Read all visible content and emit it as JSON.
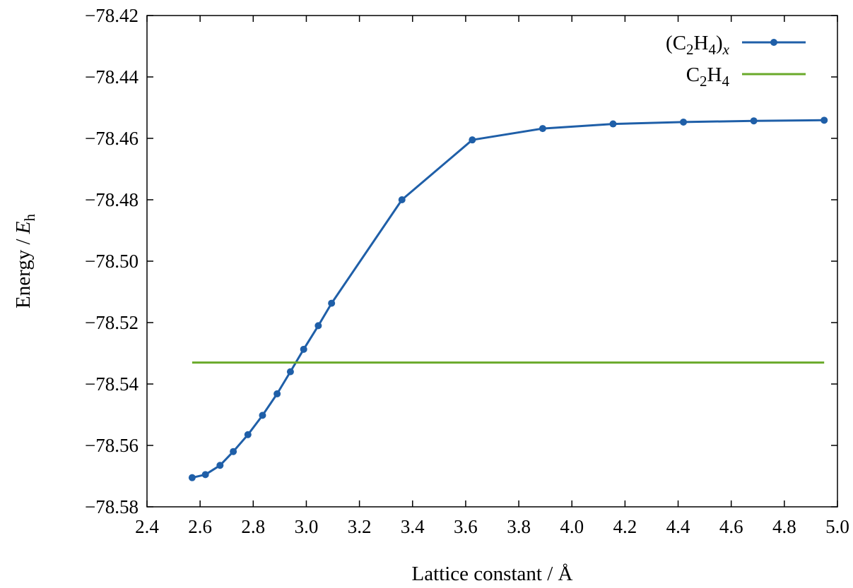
{
  "chart_data": {
    "type": "line",
    "xlabel": {
      "prefix": "Lattice constant / ",
      "unit": "Å"
    },
    "ylabel": {
      "prefix": "Energy / ",
      "symbol": "E",
      "subscript": "h"
    },
    "xlim": [
      2.4,
      5.0
    ],
    "ylim": [
      -78.58,
      -78.42
    ],
    "x_ticks": [
      "2.4",
      "2.6",
      "2.8",
      "3.0",
      "3.2",
      "3.4",
      "3.6",
      "3.8",
      "4.0",
      "4.2",
      "4.4",
      "4.6",
      "4.8",
      "5.0"
    ],
    "y_ticks": [
      "−78.42",
      "−78.44",
      "−78.46",
      "−78.48",
      "−78.50",
      "−78.52",
      "−78.54",
      "−78.56",
      "−78.58"
    ],
    "grid": false,
    "legend_position": "top-right",
    "series": [
      {
        "name": "(C2H4)x",
        "legend": {
          "open": "(C",
          "sub1": "2",
          "mid": "H",
          "sub2": "4",
          "close": ")",
          "sub3": "x"
        },
        "color": "#1f5fa8",
        "markers": true,
        "x": [
          2.57,
          2.62,
          2.675,
          2.725,
          2.78,
          2.835,
          2.89,
          2.94,
          2.99,
          3.045,
          3.095,
          3.36,
          3.625,
          3.89,
          4.155,
          4.42,
          4.685,
          4.95
        ],
        "y": [
          -78.5705,
          -78.5695,
          -78.5665,
          -78.562,
          -78.5565,
          -78.5502,
          -78.5432,
          -78.536,
          -78.5287,
          -78.521,
          -78.5137,
          -78.48,
          -78.4605,
          -78.4568,
          -78.4553,
          -78.4547,
          -78.4543,
          -78.4541
        ]
      },
      {
        "name": "C2H4",
        "legend": {
          "open": "C",
          "sub1": "2",
          "mid": "H",
          "sub2": "4",
          "close": "",
          "sub3": ""
        },
        "color": "#6aaa2a",
        "markers": false,
        "x": [
          2.57,
          4.95
        ],
        "y": [
          -78.533,
          -78.533
        ]
      }
    ]
  }
}
